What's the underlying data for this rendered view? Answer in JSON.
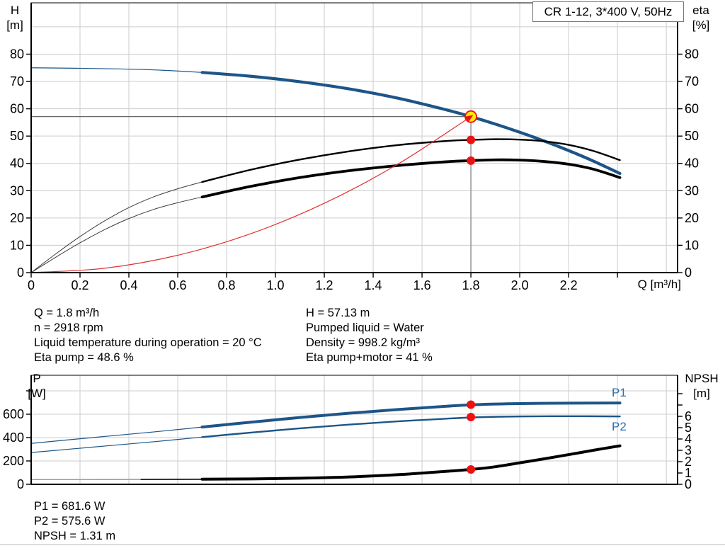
{
  "title_box": {
    "text": "CR 1-12, 3*400 V, 50Hz"
  },
  "labels": {
    "h": "H",
    "h_unit": "[m]",
    "eta": "eta",
    "eta_unit": "[%]",
    "q": "Q [m³/h]",
    "p": "P",
    "p_unit": "[W]",
    "npsh": "NPSH",
    "npsh_unit": "[m]",
    "p1": "P1",
    "p2": "P2"
  },
  "top_info": {
    "left": [
      "Q = 1.8 m³/h",
      "n = 2918 rpm",
      "Liquid temperature during operation = 20 °C",
      "Eta pump = 48.6 %"
    ],
    "right": [
      "H = 57.13 m",
      "Pumped liquid = Water",
      "Density = 998.2 kg/m³",
      "Eta pump+motor = 41 %"
    ]
  },
  "bottom_info": [
    "P1 = 681.6 W",
    "P2 = 575.6 W",
    "NPSH = 1.31 m"
  ],
  "colors": {
    "grid": "#cccccc",
    "frame": "#000000",
    "curve_blue": "#1d5588",
    "label_blue": "#2e6fae",
    "black": "#000000",
    "thin_gray": "#3c3c3c",
    "system_red": "#e03030",
    "marker_red": "#ee1111",
    "duty_yellow": "#ffe60a",
    "ref_h": "#555555",
    "ref_v": "#888888",
    "npsh_gray": "#9a9a9a"
  },
  "chart_data": [
    {
      "id": "qh",
      "type": "line",
      "title": "CR 1-12, 3*400 V, 50Hz",
      "xlabel": "Q [m³/h]",
      "ylabel_left": "H [m]",
      "ylabel_right": "eta [%]",
      "xlim": [
        0,
        2.646
      ],
      "ylim_left": [
        0,
        98.8
      ],
      "ylim_right": [
        0,
        98.8
      ],
      "x_grid": [
        0.2,
        0.4,
        0.6,
        0.8,
        1.0,
        1.2,
        1.4,
        1.6,
        1.8,
        2.0,
        2.2,
        2.4,
        2.6
      ],
      "y_grid": [
        10,
        20,
        30,
        40,
        50,
        60,
        70,
        80,
        90
      ],
      "x_tick_values": [
        0,
        0.2,
        0.4,
        0.6,
        0.8,
        1.0,
        1.2,
        1.4,
        1.6,
        1.8,
        2.0,
        2.2
      ],
      "x_tick_labels": [
        "0",
        "0.2",
        "0.4",
        "0.6",
        "0.8",
        "1.0",
        "1.2",
        "1.4",
        "1.6",
        "1.8",
        "2.0",
        "2.2"
      ],
      "x_ticks_unlabeled": [
        2.4
      ],
      "left_ticks": {
        "values": [
          0,
          10,
          20,
          30,
          40,
          50,
          60,
          70,
          80
        ],
        "labels": [
          "0",
          "10",
          "20",
          "30",
          "40",
          "50",
          "60",
          "70",
          "80"
        ],
        "unlabeled": []
      },
      "right_ticks": {
        "values": [
          0,
          10,
          20,
          30,
          40,
          50,
          60,
          70,
          80
        ],
        "labels": [
          "0",
          "10",
          "20",
          "30",
          "40",
          "50",
          "60",
          "70",
          "80"
        ],
        "unlabeled": []
      },
      "ref": {
        "q": 1.8,
        "h": 57.13
      },
      "series": [
        {
          "name": "head-curve-thin",
          "color": "#1d5588",
          "width": 1.2,
          "axis": "left",
          "points": [
            [
              0,
              75
            ],
            [
              0.18,
              74.85
            ],
            [
              0.36,
              74.6
            ],
            [
              0.54,
              74.1
            ],
            [
              0.7,
              73.3
            ]
          ]
        },
        {
          "name": "head-curve",
          "color": "#1d5588",
          "width": 4.2,
          "axis": "left",
          "points": [
            [
              0.7,
              73.3
            ],
            [
              0.9,
              71.9
            ],
            [
              1.1,
              69.9
            ],
            [
              1.3,
              67.3
            ],
            [
              1.5,
              63.9
            ],
            [
              1.7,
              59.6
            ],
            [
              1.8,
              57.13
            ],
            [
              1.9,
              54.4
            ],
            [
              2.0,
              51.4
            ],
            [
              2.1,
              48.2
            ],
            [
              2.2,
              44.7
            ],
            [
              2.3,
              40.9
            ],
            [
              2.41,
              36.3
            ]
          ]
        },
        {
          "name": "eta-pump-thin",
          "color": "#3c3c3c",
          "width": 1,
          "axis": "right",
          "points": [
            [
              0,
              0
            ],
            [
              0.1,
              6.8
            ],
            [
              0.2,
              13.2
            ],
            [
              0.3,
              18.9
            ],
            [
              0.4,
              23.8
            ],
            [
              0.5,
              27.7
            ],
            [
              0.6,
              30.7
            ],
            [
              0.7,
              33.2
            ]
          ]
        },
        {
          "name": "eta-pump",
          "color": "#000000",
          "width": 2.4,
          "axis": "right",
          "points": [
            [
              0.7,
              33.2
            ],
            [
              0.9,
              37.7
            ],
            [
              1.1,
              41.4
            ],
            [
              1.3,
              44.4
            ],
            [
              1.5,
              46.7
            ],
            [
              1.7,
              48.2
            ],
            [
              1.8,
              48.6
            ],
            [
              1.9,
              48.85
            ],
            [
              2.0,
              48.7
            ],
            [
              2.1,
              48.1
            ],
            [
              2.2,
              46.8
            ],
            [
              2.3,
              44.6
            ],
            [
              2.41,
              41.2
            ]
          ]
        },
        {
          "name": "eta-pump-motor-thin",
          "color": "#3c3c3c",
          "width": 1,
          "axis": "right",
          "points": [
            [
              0,
              0
            ],
            [
              0.1,
              5.6
            ],
            [
              0.2,
              10.9
            ],
            [
              0.3,
              15.7
            ],
            [
              0.4,
              19.8
            ],
            [
              0.5,
              23.1
            ],
            [
              0.6,
              25.6
            ],
            [
              0.7,
              27.7
            ]
          ]
        },
        {
          "name": "eta-pump-motor",
          "color": "#000000",
          "width": 3.8,
          "axis": "right",
          "points": [
            [
              0.7,
              27.7
            ],
            [
              0.9,
              31.6
            ],
            [
              1.1,
              34.8
            ],
            [
              1.3,
              37.3
            ],
            [
              1.5,
              39.2
            ],
            [
              1.7,
              40.6
            ],
            [
              1.8,
              41.0
            ],
            [
              1.9,
              41.3
            ],
            [
              2.0,
              41.2
            ],
            [
              2.1,
              40.7
            ],
            [
              2.2,
              39.7
            ],
            [
              2.3,
              37.9
            ],
            [
              2.41,
              34.8
            ]
          ]
        },
        {
          "name": "system-curve",
          "color": "#e03030",
          "width": 1.2,
          "axis": "left",
          "points": [
            [
              0,
              0
            ],
            [
              0.3,
              1.59
            ],
            [
              0.6,
              6.35
            ],
            [
              0.9,
              14.28
            ],
            [
              1.2,
              25.39
            ],
            [
              1.5,
              39.67
            ],
            [
              1.8,
              57.13
            ]
          ]
        }
      ],
      "markers": [
        {
          "q": 1.8,
          "v": 57.13,
          "axis": "left",
          "style": "duty"
        },
        {
          "q": 1.8,
          "v": 48.6,
          "axis": "right",
          "style": "dot"
        },
        {
          "q": 1.8,
          "v": 41.0,
          "axis": "right",
          "style": "dot"
        }
      ]
    },
    {
      "id": "power",
      "type": "line",
      "xlabel": "",
      "ylabel_left": "P [W]",
      "ylabel_right": "NPSH [m]",
      "xlim": [
        0,
        2.646
      ],
      "ylim_left": [
        0,
        933.3
      ],
      "ylim_right": [
        0,
        9.625
      ],
      "x_grid": [
        0.2,
        0.4,
        0.6,
        0.8,
        1.0,
        1.2,
        1.4,
        1.6,
        1.8,
        2.0,
        2.2,
        2.4,
        2.6
      ],
      "y_grid": [
        200,
        400,
        600,
        800
      ],
      "x_tick_values": [],
      "x_tick_labels": [],
      "x_ticks_unlabeled": [],
      "left_ticks": {
        "values": [
          0,
          200,
          400,
          600
        ],
        "labels": [
          "0",
          "200",
          "400",
          "600"
        ],
        "unlabeled": [
          800
        ]
      },
      "right_ticks": {
        "values": [
          0,
          1,
          2,
          3,
          4,
          5,
          6
        ],
        "labels": [
          "0",
          "1",
          "2",
          "3",
          "4",
          "5",
          "6"
        ],
        "unlabeled": [
          7,
          8
        ]
      },
      "series": [
        {
          "name": "p1-curve-thin",
          "color": "#1d5588",
          "width": 1.2,
          "axis": "left",
          "points": [
            [
              0,
              350
            ],
            [
              0.25,
              400
            ],
            [
              0.5,
              448
            ],
            [
              0.7,
              490
            ]
          ]
        },
        {
          "name": "p1-curve",
          "color": "#1d5588",
          "width": 4,
          "axis": "left",
          "points": [
            [
              0.7,
              490
            ],
            [
              0.9,
              532
            ],
            [
              1.1,
              572
            ],
            [
              1.3,
              608
            ],
            [
              1.5,
              640
            ],
            [
              1.7,
              668
            ],
            [
              1.8,
              680
            ],
            [
              1.9,
              687
            ],
            [
              2.0,
              691
            ],
            [
              2.2,
              695
            ],
            [
              2.41,
              696
            ]
          ]
        },
        {
          "name": "p2-curve-thin",
          "color": "#1d5588",
          "width": 1.2,
          "axis": "left",
          "points": [
            [
              0,
              272
            ],
            [
              0.25,
              318
            ],
            [
              0.5,
              364
            ],
            [
              0.7,
              404
            ]
          ]
        },
        {
          "name": "p2-curve",
          "color": "#1d5588",
          "width": 2.4,
          "axis": "left",
          "points": [
            [
              0.7,
              404
            ],
            [
              0.9,
              443
            ],
            [
              1.1,
              479
            ],
            [
              1.3,
              511
            ],
            [
              1.5,
              539
            ],
            [
              1.7,
              562
            ],
            [
              1.8,
              572
            ],
            [
              1.9,
              578
            ],
            [
              2.0,
              581
            ],
            [
              2.2,
              583
            ],
            [
              2.41,
              581
            ]
          ]
        },
        {
          "name": "npsh-curve-gray",
          "color": "#9a9a9a",
          "width": 1.4,
          "axis": "right",
          "points": [
            [
              0,
              0.42
            ],
            [
              0.25,
              0.42
            ],
            [
              0.45,
              0.43
            ]
          ]
        },
        {
          "name": "npsh-curve-thin",
          "color": "#000000",
          "width": 1.6,
          "axis": "right",
          "points": [
            [
              0.45,
              0.43
            ],
            [
              0.7,
              0.45
            ]
          ]
        },
        {
          "name": "npsh-curve",
          "color": "#000000",
          "width": 4,
          "axis": "right",
          "points": [
            [
              0.7,
              0.45
            ],
            [
              0.9,
              0.48
            ],
            [
              1.1,
              0.54
            ],
            [
              1.3,
              0.65
            ],
            [
              1.5,
              0.85
            ],
            [
              1.7,
              1.15
            ],
            [
              1.8,
              1.31
            ],
            [
              1.9,
              1.55
            ],
            [
              2.0,
              1.9
            ],
            [
              2.1,
              2.25
            ],
            [
              2.2,
              2.62
            ],
            [
              2.3,
              3.0
            ],
            [
              2.41,
              3.4
            ]
          ]
        }
      ],
      "markers": [
        {
          "q": 1.8,
          "v": 681.6,
          "axis": "left",
          "style": "dot"
        },
        {
          "q": 1.8,
          "v": 575.6,
          "axis": "left",
          "style": "dot"
        },
        {
          "q": 1.8,
          "v": 1.31,
          "axis": "right",
          "style": "dot"
        }
      ]
    }
  ]
}
